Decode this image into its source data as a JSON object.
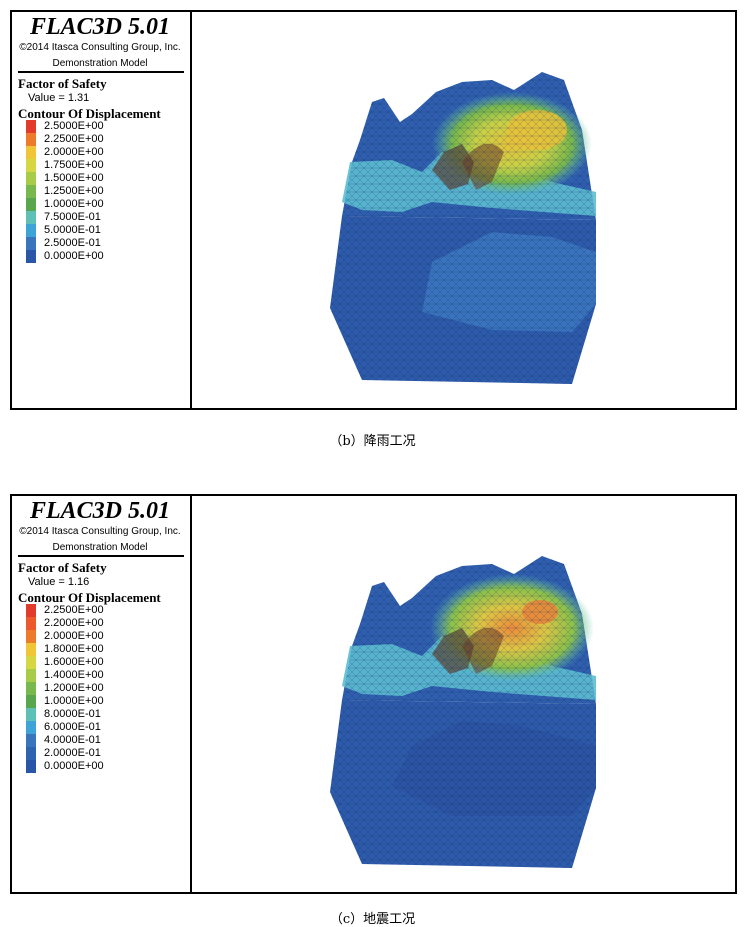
{
  "panels": [
    {
      "app_title": "FLAC3D 5.01",
      "copyright": "©2014 Itasca Consulting Group, Inc.",
      "model_name": "Demonstration Model",
      "fos_title": "Factor of Safety",
      "fos_value": "Value = 1.31",
      "contour_title": "Contour Of Displacement",
      "legend": [
        {
          "label": "2.5000E+00",
          "color": "#e23b2b"
        },
        {
          "label": "2.2500E+00",
          "color": "#ee7a2c"
        },
        {
          "label": "2.0000E+00",
          "color": "#f0c537"
        },
        {
          "label": "1.7500E+00",
          "color": "#d6d843"
        },
        {
          "label": "1.5000E+00",
          "color": "#a7cc4a"
        },
        {
          "label": "1.2500E+00",
          "color": "#78b84c"
        },
        {
          "label": "1.0000E+00",
          "color": "#59a64f"
        },
        {
          "label": "7.5000E-01",
          "color": "#5fc0b6"
        },
        {
          "label": "5.0000E-01",
          "color": "#3ea4d7"
        },
        {
          "label": "2.5000E-01",
          "color": "#3a74bd"
        },
        {
          "label": "0.0000E+00",
          "color": "#2a56a8"
        }
      ],
      "caption": "（b）降雨工况"
    },
    {
      "app_title": "FLAC3D 5.01",
      "copyright": "©2014 Itasca Consulting Group, Inc.",
      "model_name": "Demonstration Model",
      "fos_title": "Factor of Safety",
      "fos_value": "Value = 1.16",
      "contour_title": "Contour Of Displacement",
      "legend": [
        {
          "label": "2.2500E+00",
          "color": "#e23b2b"
        },
        {
          "label": "2.2000E+00",
          "color": "#ec5a2c"
        },
        {
          "label": "2.0000E+00",
          "color": "#ee7a2c"
        },
        {
          "label": "1.8000E+00",
          "color": "#f0c537"
        },
        {
          "label": "1.6000E+00",
          "color": "#d6d843"
        },
        {
          "label": "1.4000E+00",
          "color": "#a7cc4a"
        },
        {
          "label": "1.2000E+00",
          "color": "#78b84c"
        },
        {
          "label": "1.0000E+00",
          "color": "#59a64f"
        },
        {
          "label": "8.0000E-01",
          "color": "#5fc0b6"
        },
        {
          "label": "6.0000E-01",
          "color": "#3ea4d7"
        },
        {
          "label": "4.0000E-01",
          "color": "#3a74bd"
        },
        {
          "label": "2.0000E-01",
          "color": "#2f63b0"
        },
        {
          "label": "0.0000E+00",
          "color": "#2a56a8"
        }
      ],
      "caption": "（c）地震工况"
    }
  ]
}
